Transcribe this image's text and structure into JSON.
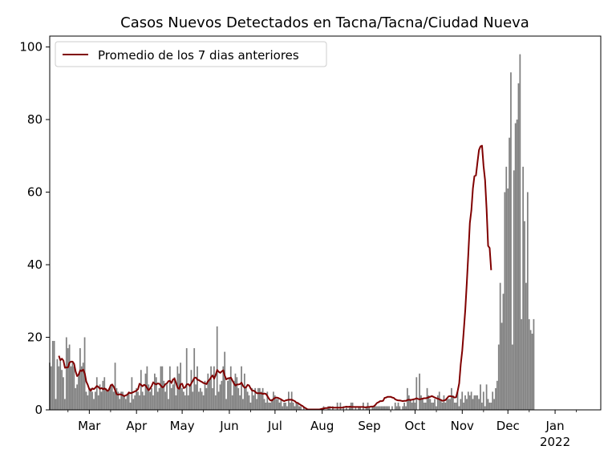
{
  "chart_data": {
    "type": "bar",
    "title": "Casos Nuevos Detectados en Tacna/Tacna/Ciudad Nueva",
    "xlabel": "",
    "ylabel": "",
    "ylim": [
      0,
      103
    ],
    "yticks": [
      0,
      20,
      40,
      60,
      80,
      100
    ],
    "xlim": [
      "2021-02-03",
      "2022-01-31"
    ],
    "xticks": [
      {
        "date": "2021-03-01",
        "label": "Mar"
      },
      {
        "date": "2021-04-01",
        "label": "Apr"
      },
      {
        "date": "2021-05-01",
        "label": "May"
      },
      {
        "date": "2021-06-01",
        "label": "Jun"
      },
      {
        "date": "2021-07-01",
        "label": "Jul"
      },
      {
        "date": "2021-08-01",
        "label": "Aug"
      },
      {
        "date": "2021-09-01",
        "label": "Sep"
      },
      {
        "date": "2021-10-01",
        "label": "Oct"
      },
      {
        "date": "2021-11-01",
        "label": "Nov"
      },
      {
        "date": "2021-12-01",
        "label": "Dec"
      },
      {
        "date": "2022-01-01",
        "label": "Jan"
      }
    ],
    "year_label": "2022",
    "legend": {
      "position": "upper left",
      "entries": [
        "Promedio de los 7 dias anteriores"
      ]
    },
    "grid": false,
    "colors": {
      "bars": "#808080",
      "line": "#800000"
    },
    "series": [
      {
        "type": "bar",
        "start_date": "2021-02-03",
        "values": [
          13,
          12,
          19,
          19,
          3,
          14,
          12,
          14,
          11,
          9,
          3,
          20,
          17,
          18,
          12,
          13,
          12,
          6,
          7,
          10,
          17,
          12,
          13,
          20,
          5,
          4,
          6,
          6,
          5,
          3,
          5,
          9,
          4,
          7,
          5,
          8,
          9,
          6,
          5,
          6,
          7,
          7,
          5,
          13,
          6,
          5,
          3,
          5,
          5,
          4,
          3,
          4,
          5,
          2,
          9,
          3,
          4,
          6,
          5,
          4,
          11,
          5,
          4,
          10,
          12,
          7,
          5,
          6,
          4,
          10,
          9,
          5,
          6,
          12,
          12,
          8,
          5,
          7,
          3,
          12,
          6,
          7,
          9,
          4,
          12,
          10,
          13,
          6,
          5,
          4,
          17,
          4,
          7,
          11,
          5,
          17,
          7,
          12,
          5,
          6,
          5,
          4,
          8,
          6,
          10,
          8,
          12,
          6,
          12,
          4,
          23,
          5,
          7,
          8,
          12,
          16,
          3,
          8,
          9,
          12,
          4,
          8,
          10,
          9,
          6,
          4,
          12,
          3,
          10,
          6,
          5,
          4,
          2,
          6,
          4,
          6,
          3,
          6,
          6,
          5,
          6,
          3,
          2,
          5,
          2,
          2,
          3,
          5,
          4,
          3,
          3,
          2,
          3,
          1,
          2,
          2,
          1,
          5,
          2,
          5,
          2,
          1,
          2,
          2,
          1,
          1,
          0,
          1,
          0,
          0,
          0,
          0,
          0,
          0,
          0,
          0,
          0,
          0,
          0,
          0,
          1,
          0,
          0,
          1,
          1,
          0,
          1,
          0,
          0,
          2,
          0,
          2,
          0,
          1,
          0,
          1,
          0,
          1,
          2,
          2,
          0,
          1,
          0,
          1,
          1,
          0,
          2,
          0,
          1,
          2,
          1,
          0,
          1,
          1,
          1,
          1,
          1,
          1,
          1,
          1,
          1,
          1,
          1,
          1,
          0,
          1,
          0,
          2,
          1,
          2,
          1,
          0,
          1,
          2,
          1,
          6,
          4,
          3,
          2,
          3,
          2,
          9,
          0,
          10,
          4,
          3,
          2,
          2,
          6,
          4,
          3,
          2,
          2,
          3,
          1,
          4,
          5,
          3,
          2,
          4,
          2,
          3,
          3,
          3,
          6,
          4,
          2,
          2,
          5,
          1,
          3,
          5,
          2,
          4,
          3,
          5,
          4,
          5,
          3,
          4,
          4,
          4,
          3,
          7,
          2,
          5,
          1,
          7,
          3,
          2,
          2,
          5,
          3,
          6,
          8,
          18,
          35,
          24,
          32,
          60,
          67,
          61,
          75,
          93,
          18,
          66,
          79,
          80,
          90,
          98,
          25,
          67,
          52,
          35,
          60,
          25,
          22,
          21,
          25
        ]
      },
      {
        "type": "line",
        "name": "Promedio de los 7 dias anteriores",
        "start_date": "2021-02-09",
        "values": [
          14.9,
          13.7,
          14.1,
          13.6,
          11.6,
          11.7,
          11.7,
          13.0,
          13.3,
          13.3,
          12.7,
          10.6,
          9.3,
          9.7,
          10.9,
          10.7,
          11.1,
          10.1,
          7.8,
          6.9,
          5.7,
          5.3,
          5.9,
          5.7,
          6.1,
          6.6,
          6.3,
          5.8,
          6.0,
          5.7,
          5.9,
          5.6,
          5.2,
          5.6,
          6.7,
          7.0,
          6.4,
          5.4,
          4.3,
          4.2,
          4.3,
          4.2,
          4.0,
          3.8,
          4.0,
          4.2,
          4.8,
          4.6,
          4.7,
          4.9,
          5.1,
          5.3,
          5.7,
          7.2,
          6.9,
          6.5,
          6.9,
          6.7,
          6.0,
          5.4,
          5.9,
          6.6,
          7.6,
          7.2,
          7.0,
          7.3,
          7.2,
          6.7,
          6.2,
          6.4,
          7.1,
          7.3,
          7.9,
          8.0,
          7.4,
          8.4,
          8.6,
          7.4,
          6.1,
          5.8,
          7.1,
          7.2,
          6.0,
          6.2,
          7.0,
          7.1,
          6.6,
          7.3,
          8.0,
          8.8,
          8.9,
          8.3,
          8.2,
          7.9,
          7.7,
          7.4,
          7.3,
          7.1,
          7.9,
          8.3,
          9.0,
          9.5,
          8.6,
          9.6,
          11.0,
          10.5,
          10.2,
          10.6,
          10.9,
          9.4,
          8.4,
          8.7,
          8.7,
          8.9,
          8.1,
          7.3,
          6.7,
          7.0,
          7.0,
          7.1,
          7.5,
          6.6,
          6.1,
          6.2,
          6.9,
          6.7,
          5.9,
          5.3,
          5.3,
          5.0,
          4.6,
          4.6,
          4.6,
          4.6,
          4.4,
          4.5,
          4.4,
          3.8,
          3.1,
          2.6,
          2.6,
          3.0,
          3.3,
          3.4,
          3.3,
          3.1,
          2.9,
          2.6,
          2.4,
          2.6,
          2.7,
          2.8,
          2.8,
          2.8,
          2.6,
          2.4,
          2.0,
          1.9,
          1.6,
          1.3,
          1.1,
          0.7,
          0.5,
          0.2,
          0.1,
          0.1,
          0.1,
          0.1,
          0.1,
          0.1,
          0.1,
          0.1,
          0.2,
          0.3,
          0.4,
          0.5,
          0.5,
          0.6,
          0.7,
          0.7,
          0.6,
          0.6,
          0.6,
          0.6,
          0.6,
          0.6,
          0.6,
          0.7,
          0.8,
          0.9,
          0.8,
          0.9,
          0.8,
          0.8,
          0.8,
          0.8,
          0.8,
          0.8,
          0.8,
          0.8,
          0.8,
          0.7,
          0.7,
          0.8,
          0.8,
          0.9,
          0.9,
          1.0,
          1.4,
          1.9,
          2.1,
          2.4,
          2.4,
          2.5,
          3.3,
          3.4,
          3.6,
          3.6,
          3.6,
          3.4,
          3.3,
          2.9,
          2.7,
          2.6,
          2.6,
          2.5,
          2.4,
          2.5,
          2.5,
          2.7,
          2.8,
          2.7,
          2.8,
          2.9,
          3.0,
          3.2,
          3.0,
          2.9,
          3.0,
          3.1,
          3.2,
          3.2,
          3.3,
          3.5,
          3.6,
          3.8,
          3.6,
          3.4,
          3.2,
          3.1,
          2.9,
          2.7,
          2.5,
          2.6,
          2.7,
          3.2,
          3.7,
          3.8,
          3.7,
          3.6,
          3.4,
          3.5,
          5.2,
          7.3,
          12.5,
          16.3,
          21.8,
          27.6,
          35.0,
          43.0,
          51.5,
          55.0,
          61.0,
          64.4,
          64.6,
          68.2,
          71.6,
          72.6,
          72.8,
          67.2,
          63.3,
          55.3,
          45.2,
          44.6,
          38.5
        ]
      }
    ]
  }
}
